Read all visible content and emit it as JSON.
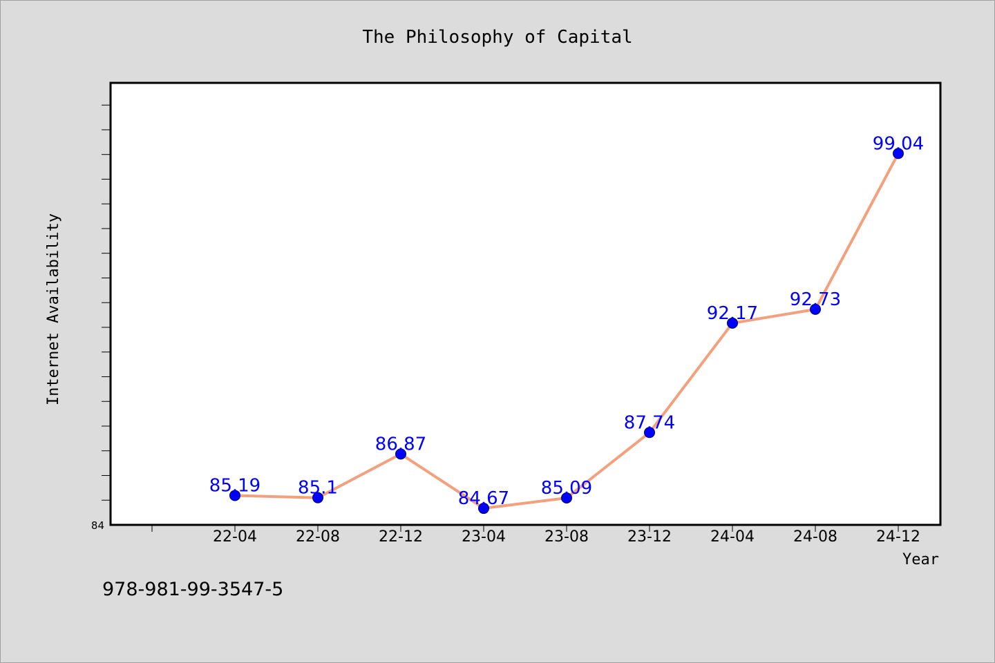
{
  "chart_data": {
    "type": "line",
    "title": "The Philosophy of Capital",
    "xlabel": "Year",
    "ylabel": "Internet Availability",
    "categories": [
      "22-04",
      "22-08",
      "22-12",
      "23-04",
      "23-08",
      "23-12",
      "24-04",
      "24-08",
      "24-12"
    ],
    "series": [
      {
        "values": [
          85.19,
          85.1,
          86.87,
          84.67,
          85.09,
          87.74,
          92.17,
          92.73,
          99.04
        ],
        "labels": [
          "85.19",
          "85.1",
          "86.87",
          "84.67",
          "85.09",
          "87.74",
          "92.17",
          "92.73",
          "99.04"
        ]
      }
    ],
    "ylim": [
      84,
      101.9
    ],
    "yticks_labeled": [
      "84"
    ],
    "grid": false,
    "line_color": "#f4a07c",
    "marker_color": "#0000ff",
    "label_color": "#0000ff"
  },
  "footer": {
    "isbn": "978-981-99-3547-5"
  }
}
